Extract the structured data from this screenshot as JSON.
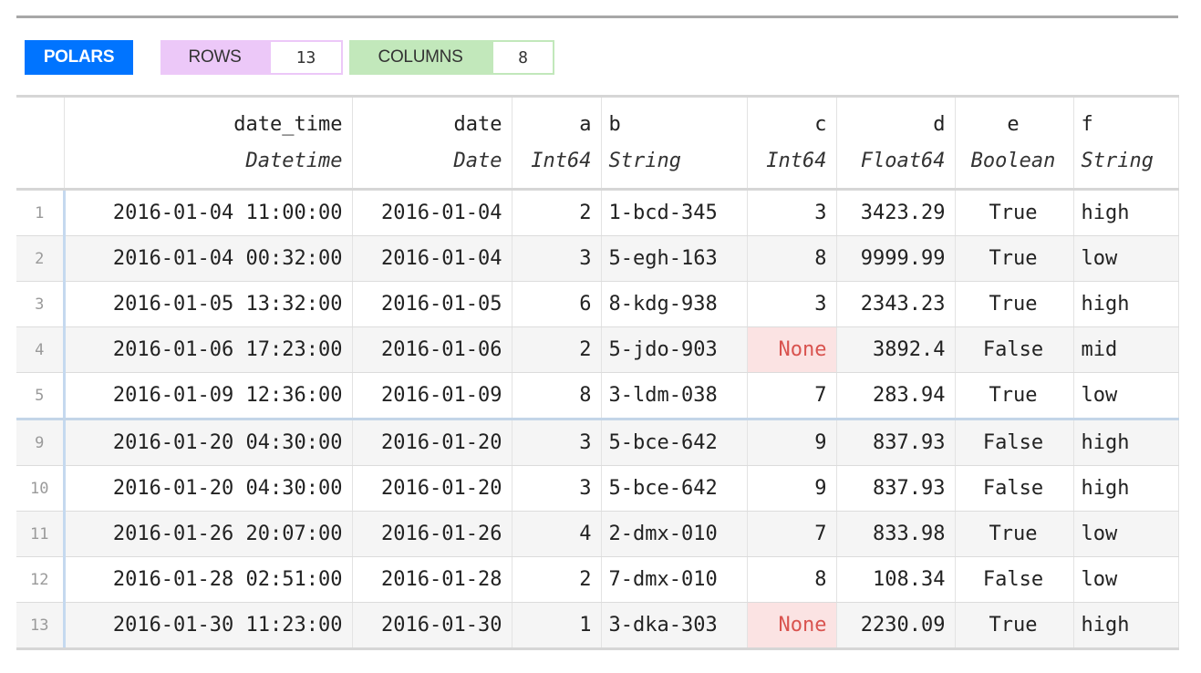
{
  "header": {
    "polars_label": "POLARS",
    "rows_label": "ROWS",
    "rows_value": "13",
    "columns_label": "COLUMNS",
    "columns_value": "8"
  },
  "colors": {
    "polars_bg": "#0074ff",
    "rows_bg": "#ecc8f8",
    "columns_bg": "#c2e8bb"
  },
  "columns": [
    {
      "name": "date_time",
      "dtype": "Datetime",
      "align": "ar"
    },
    {
      "name": "date",
      "dtype": "Date",
      "align": "ar"
    },
    {
      "name": "a",
      "dtype": "Int64",
      "align": "ar"
    },
    {
      "name": "b",
      "dtype": "String",
      "align": "al"
    },
    {
      "name": "c",
      "dtype": "Int64",
      "align": "ar"
    },
    {
      "name": "d",
      "dtype": "Float64",
      "align": "ar"
    },
    {
      "name": "e",
      "dtype": "Boolean",
      "align": "ac"
    },
    {
      "name": "f",
      "dtype": "String",
      "align": "al"
    }
  ],
  "rows": [
    {
      "index": "1",
      "cells": [
        "2016-01-04 11:00:00",
        "2016-01-04",
        "2",
        "1-bcd-345",
        "3",
        "3423.29",
        "True",
        "high"
      ]
    },
    {
      "index": "2",
      "cells": [
        "2016-01-04 00:32:00",
        "2016-01-04",
        "3",
        "5-egh-163",
        "8",
        "9999.99",
        "True",
        "low"
      ]
    },
    {
      "index": "3",
      "cells": [
        "2016-01-05 13:32:00",
        "2016-01-05",
        "6",
        "8-kdg-938",
        "3",
        "2343.23",
        "True",
        "high"
      ]
    },
    {
      "index": "4",
      "cells": [
        "2016-01-06 17:23:00",
        "2016-01-06",
        "2",
        "5-jdo-903",
        "None",
        "3892.4",
        "False",
        "mid"
      ]
    },
    {
      "index": "5",
      "cells": [
        "2016-01-09 12:36:00",
        "2016-01-09",
        "8",
        "3-ldm-038",
        "7",
        "283.94",
        "True",
        "low"
      ]
    },
    {
      "index": "9",
      "cells": [
        "2016-01-20 04:30:00",
        "2016-01-20",
        "3",
        "5-bce-642",
        "9",
        "837.93",
        "False",
        "high"
      ]
    },
    {
      "index": "10",
      "cells": [
        "2016-01-20 04:30:00",
        "2016-01-20",
        "3",
        "5-bce-642",
        "9",
        "837.93",
        "False",
        "high"
      ]
    },
    {
      "index": "11",
      "cells": [
        "2016-01-26 20:07:00",
        "2016-01-26",
        "4",
        "2-dmx-010",
        "7",
        "833.98",
        "True",
        "low"
      ]
    },
    {
      "index": "12",
      "cells": [
        "2016-01-28 02:51:00",
        "2016-01-28",
        "2",
        "7-dmx-010",
        "8",
        "108.34",
        "False",
        "low"
      ]
    },
    {
      "index": "13",
      "cells": [
        "2016-01-30 11:23:00",
        "2016-01-30",
        "1",
        "3-dka-303",
        "None",
        "2230.09",
        "True",
        "high"
      ]
    }
  ]
}
